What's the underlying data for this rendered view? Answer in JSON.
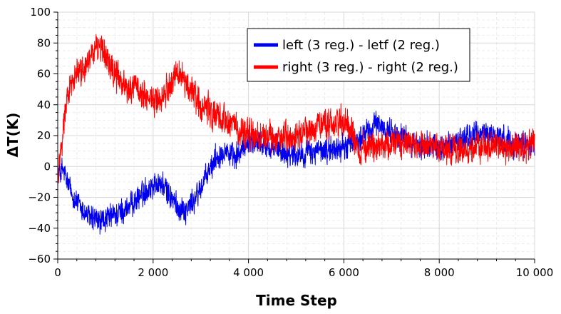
{
  "chart_data": {
    "type": "line",
    "title": "",
    "xlabel": "Time Step",
    "ylabel": "ΔT(K)",
    "xlim": [
      0,
      10000
    ],
    "ylim": [
      -60,
      100
    ],
    "x_major_ticks": [
      0,
      2000,
      4000,
      6000,
      8000,
      10000
    ],
    "x_tick_labels": [
      "0",
      "2 000",
      "4 000",
      "6 000",
      "8 000",
      "10 000"
    ],
    "y_major_ticks": [
      -60,
      -40,
      -20,
      0,
      20,
      40,
      60,
      80,
      100
    ],
    "y_tick_labels": [
      "−60",
      "−40",
      "−20",
      "0",
      "20",
      "40",
      "60",
      "80",
      "100"
    ],
    "grid": true,
    "legend_position": "top-right",
    "series": [
      {
        "name": "left (3 reg.) - letf (2 reg.)",
        "color": "#0000ee",
        "noise_amplitude": 6,
        "trend": {
          "x": [
            0,
            100,
            300,
            500,
            700,
            900,
            1100,
            1300,
            1500,
            1700,
            1900,
            2100,
            2300,
            2500,
            2700,
            2900,
            3100,
            3300,
            3500,
            3700,
            3850,
            4000,
            4500,
            5000,
            5500,
            6000,
            6200,
            6400,
            6700,
            7000,
            7500,
            8000,
            8500,
            9000,
            9500,
            10000
          ],
          "y": [
            -5,
            -2,
            -18,
            -28,
            -34,
            -36,
            -33,
            -30,
            -26,
            -20,
            -14,
            -10,
            -16,
            -26,
            -28,
            -20,
            -8,
            5,
            12,
            4,
            10,
            18,
            12,
            8,
            10,
            12,
            16,
            20,
            28,
            22,
            14,
            12,
            18,
            22,
            16,
            14
          ]
        }
      },
      {
        "name": "right (3 reg.) - right (2 reg.)",
        "color": "#ff0000",
        "noise_amplitude": 7,
        "trend": {
          "x": [
            0,
            100,
            200,
            300,
            500,
            700,
            900,
            1100,
            1300,
            1500,
            1700,
            1900,
            2100,
            2300,
            2500,
            2700,
            2900,
            3100,
            3300,
            3500,
            3700,
            3900,
            4100,
            4500,
            5000,
            5500,
            6000,
            6200,
            6300,
            6600,
            7000,
            7500,
            8000,
            8500,
            9000,
            9500,
            10000
          ],
          "y": [
            -5,
            20,
            45,
            55,
            63,
            72,
            78,
            65,
            55,
            52,
            50,
            45,
            43,
            50,
            60,
            55,
            45,
            38,
            35,
            30,
            25,
            22,
            20,
            18,
            20,
            25,
            30,
            20,
            10,
            12,
            14,
            15,
            12,
            10,
            14,
            12,
            14
          ]
        }
      }
    ]
  }
}
